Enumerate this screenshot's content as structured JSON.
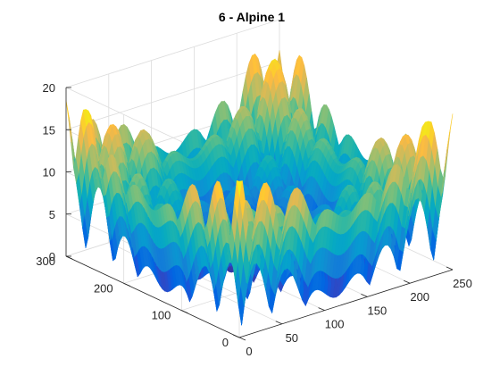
{
  "chart_data": {
    "type": "surface",
    "title": "6 - Alpine 1",
    "colormap": "parula",
    "function": "alpine1",
    "x_range": [
      0,
      250
    ],
    "y_range": [
      0,
      300
    ],
    "z_range": [
      0,
      20
    ],
    "x_ticks": [
      0,
      50,
      100,
      150,
      200,
      250
    ],
    "y_ticks": [
      0,
      100,
      200,
      300
    ],
    "z_ticks": [
      0,
      5,
      10,
      15,
      20
    ],
    "grid": true,
    "view": "3d-default",
    "peak_z": 18.5
  }
}
